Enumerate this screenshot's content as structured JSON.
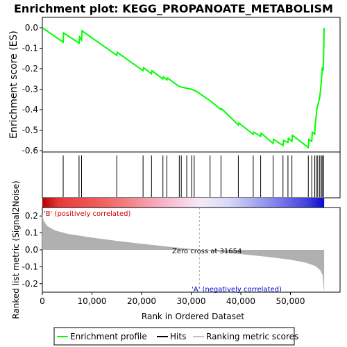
{
  "chart_data": {
    "type": "line",
    "title": "Enrichment plot: KEGG_PROPANOATE_METABOLISM",
    "es_panel": {
      "ylabel": "Enrichment score (ES)",
      "ylim": [
        -0.6,
        0.0
      ],
      "yticks": [
        "0.0",
        "-0.1",
        "-0.2",
        "-0.3",
        "-0.4",
        "-0.5",
        "-0.6"
      ],
      "ytick_values": [
        0.0,
        -0.1,
        -0.2,
        -0.3,
        -0.4,
        -0.5,
        -0.6
      ],
      "line_color": "#00ff00",
      "points": [
        [
          0,
          0.0
        ],
        [
          4200,
          -0.07
        ],
        [
          4300,
          -0.025
        ],
        [
          7400,
          -0.075
        ],
        [
          7500,
          -0.045
        ],
        [
          7900,
          -0.06
        ],
        [
          8000,
          -0.015
        ],
        [
          15000,
          -0.135
        ],
        [
          15100,
          -0.12
        ],
        [
          20300,
          -0.21
        ],
        [
          20400,
          -0.195
        ],
        [
          22000,
          -0.225
        ],
        [
          22100,
          -0.21
        ],
        [
          24300,
          -0.25
        ],
        [
          24400,
          -0.24
        ],
        [
          25100,
          -0.255
        ],
        [
          25200,
          -0.245
        ],
        [
          27500,
          -0.285
        ],
        [
          28000,
          -0.29
        ],
        [
          29000,
          -0.295
        ],
        [
          30000,
          -0.3
        ],
        [
          31000,
          -0.31
        ],
        [
          34000,
          -0.36
        ],
        [
          36000,
          -0.4
        ],
        [
          36100,
          -0.395
        ],
        [
          39500,
          -0.475
        ],
        [
          39600,
          -0.465
        ],
        [
          42500,
          -0.52
        ],
        [
          42600,
          -0.51
        ],
        [
          44000,
          -0.53
        ],
        [
          44100,
          -0.515
        ],
        [
          46500,
          -0.565
        ],
        [
          46600,
          -0.545
        ],
        [
          48500,
          -0.575
        ],
        [
          48600,
          -0.55
        ],
        [
          49500,
          -0.56
        ],
        [
          49600,
          -0.54
        ],
        [
          50300,
          -0.555
        ],
        [
          50400,
          -0.525
        ],
        [
          53600,
          -0.585
        ],
        [
          53700,
          -0.545
        ],
        [
          54300,
          -0.555
        ],
        [
          54400,
          -0.51
        ],
        [
          54900,
          -0.52
        ],
        [
          55000,
          -0.47
        ],
        [
          55200,
          -0.43
        ],
        [
          55300,
          -0.4
        ],
        [
          55500,
          -0.38
        ],
        [
          55600,
          -0.37
        ],
        [
          55900,
          -0.34
        ],
        [
          56000,
          -0.32
        ],
        [
          56200,
          -0.27
        ],
        [
          56300,
          -0.24
        ],
        [
          56400,
          -0.2
        ],
        [
          56600,
          -0.21
        ],
        [
          56700,
          -0.12
        ],
        [
          56800,
          0.0
        ]
      ]
    },
    "hits": [
      4200,
      7400,
      7900,
      15000,
      20300,
      22000,
      24300,
      25100,
      27600,
      28000,
      29100,
      30100,
      30600,
      33800,
      36000,
      39500,
      42500,
      44000,
      46500,
      48500,
      49500,
      50300,
      53600,
      54300,
      54900,
      55200,
      55500,
      55900,
      56200,
      56400,
      56700
    ],
    "ranking_panel": {
      "ylabel": "Ranked list metric (Signal2Noise)",
      "ylim": [
        -0.25,
        0.25
      ],
      "yticks": [
        "0.2",
        "0.1",
        "0.0",
        "-0.1",
        "-0.2"
      ],
      "ytick_values": [
        0.2,
        0.1,
        0.0,
        -0.1,
        -0.2
      ],
      "fill_color": "#b0b0b0",
      "curve": [
        [
          0,
          0.21
        ],
        [
          300,
          0.17
        ],
        [
          1000,
          0.14
        ],
        [
          2500,
          0.115
        ],
        [
          5000,
          0.095
        ],
        [
          10000,
          0.072
        ],
        [
          15000,
          0.053
        ],
        [
          20000,
          0.036
        ],
        [
          25000,
          0.02
        ],
        [
          30000,
          0.005
        ],
        [
          31654,
          0.0
        ],
        [
          35000,
          -0.01
        ],
        [
          40000,
          -0.025
        ],
        [
          45000,
          -0.04
        ],
        [
          50000,
          -0.058
        ],
        [
          53000,
          -0.075
        ],
        [
          55000,
          -0.095
        ],
        [
          56000,
          -0.12
        ],
        [
          56500,
          -0.15
        ],
        [
          56800,
          -0.26
        ]
      ]
    },
    "xlabel": "Rank in Ordered Dataset",
    "xlim": [
      0,
      60000
    ],
    "xticks": [
      "0",
      "10,000",
      "20,000",
      "30,000",
      "40,000",
      "50,000"
    ],
    "xtick_values": [
      0,
      10000,
      20000,
      30000,
      40000,
      50000
    ],
    "n_genes": 56800,
    "zero_cross_rank": 31654,
    "annotations": {
      "zero_cross": "Zero cross at 31654",
      "positive": "'B' (positively correlated)",
      "negative": "'A' (negatively correlated)"
    },
    "legend": {
      "placement": "bottom",
      "entries": [
        {
          "label": "Enrichment profile",
          "color": "#00ff00"
        },
        {
          "label": "Hits",
          "color": "#000000"
        },
        {
          "label": "Ranking metric scores",
          "color": "#c0c0c0"
        }
      ]
    }
  }
}
